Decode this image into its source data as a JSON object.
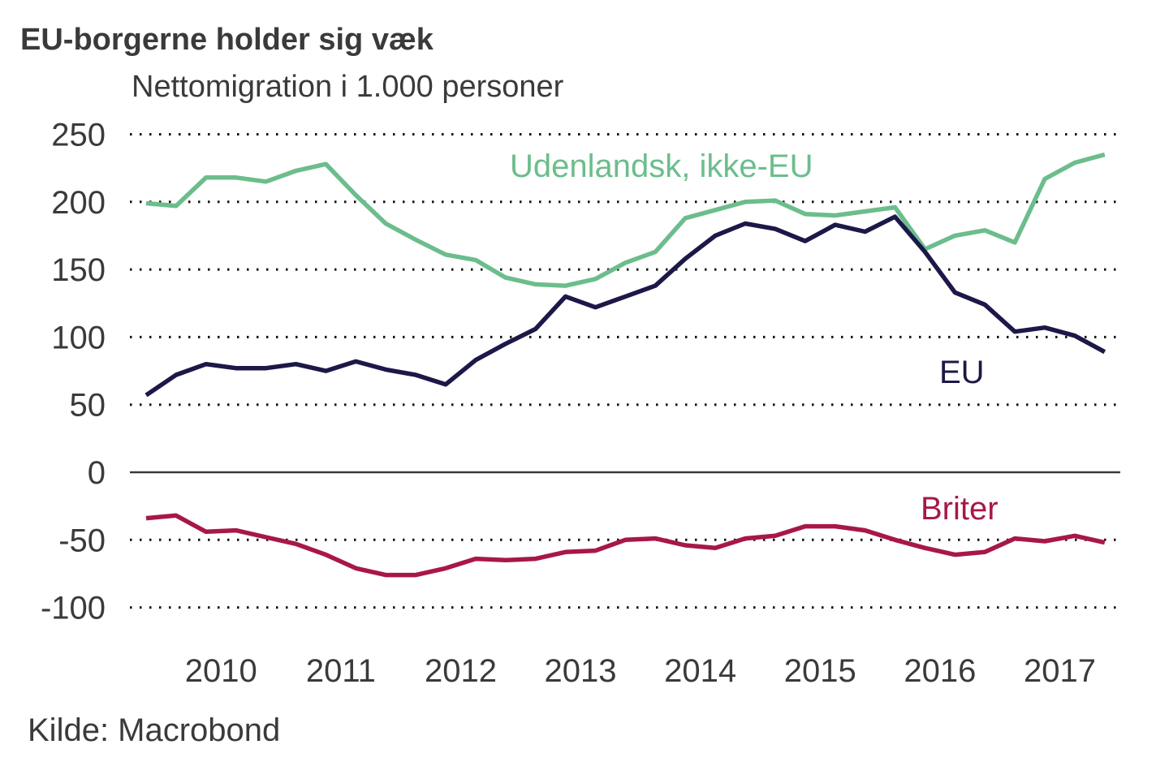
{
  "chart_data": {
    "type": "line",
    "title": "EU-borgerne holder sig væk",
    "subtitle": "Nettomigration i 1.000 personer",
    "source": "Kilde: Macrobond",
    "xlabel": "",
    "ylabel": "Nettomigration i 1.000 personer",
    "ylim": [
      -100,
      250
    ],
    "yticks": [
      250,
      200,
      150,
      100,
      50,
      0,
      -50,
      -100
    ],
    "ytick_labels": [
      "250",
      "200",
      "150",
      "100",
      "50",
      "0",
      "-50",
      "-100"
    ],
    "x": [
      "2009Q4",
      "2010Q1",
      "2010Q2",
      "2010Q3",
      "2010Q4",
      "2011Q1",
      "2011Q2",
      "2011Q3",
      "2011Q4",
      "2012Q1",
      "2012Q2",
      "2012Q3",
      "2012Q4",
      "2013Q1",
      "2013Q2",
      "2013Q3",
      "2013Q4",
      "2014Q1",
      "2014Q2",
      "2014Q3",
      "2014Q4",
      "2015Q1",
      "2015Q2",
      "2015Q3",
      "2015Q4",
      "2016Q1",
      "2016Q2",
      "2016Q3",
      "2016Q4",
      "2017Q1",
      "2017Q2",
      "2017Q3",
      "2017Q4"
    ],
    "xtick_labels": [
      "2010",
      "2011",
      "2012",
      "2013",
      "2014",
      "2015",
      "2016",
      "2017"
    ],
    "grid": "horizontal-dotted",
    "legend": "inline labels",
    "series": [
      {
        "name": "Udenlandsk, ikke-EU",
        "color": "#6cbd8c",
        "values": [
          199,
          197,
          218,
          218,
          215,
          223,
          228,
          205,
          184,
          172,
          161,
          157,
          144,
          139,
          138,
          143,
          155,
          163,
          188,
          194,
          200,
          201,
          191,
          190,
          193,
          196,
          165,
          175,
          179,
          170,
          217,
          229,
          235
        ]
      },
      {
        "name": "EU",
        "color": "#1c1848",
        "values": [
          57,
          72,
          80,
          77,
          77,
          80,
          75,
          82,
          76,
          72,
          65,
          83,
          95,
          106,
          130,
          122,
          130,
          138,
          158,
          175,
          184,
          180,
          171,
          183,
          178,
          189,
          163,
          133,
          124,
          104,
          107,
          101,
          89
        ]
      },
      {
        "name": "Briter",
        "color": "#a8174a",
        "values": [
          -34,
          -32,
          -44,
          -43,
          -48,
          -53,
          -61,
          -71,
          -76,
          -76,
          -71,
          -64,
          -65,
          -64,
          -59,
          -58,
          -50,
          -49,
          -54,
          -56,
          -49,
          -47,
          -40,
          -40,
          -43,
          -50,
          -56,
          -61,
          -59,
          -49,
          -51,
          -47,
          -52
        ]
      }
    ]
  }
}
